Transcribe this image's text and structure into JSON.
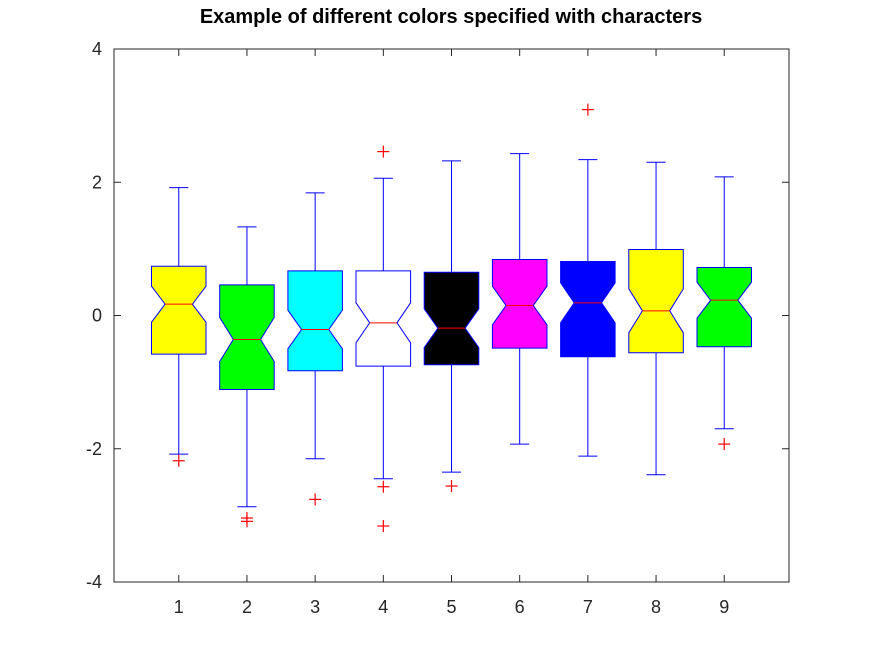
{
  "chart_data": {
    "type": "boxplot",
    "title": "Example of different colors specified with characters",
    "xlabel": "",
    "ylabel": "",
    "categories": [
      "1",
      "2",
      "3",
      "4",
      "5",
      "6",
      "7",
      "8",
      "9"
    ],
    "xlim": [
      0.05,
      9.95
    ],
    "ylim": [
      -4,
      4
    ],
    "yticks": [
      -4,
      -2,
      0,
      2,
      4
    ],
    "yticklabels": [
      "-4",
      "-2",
      "0",
      "2",
      "4"
    ],
    "notched": true,
    "grid": false,
    "legend": "none",
    "box_edge_color": "#0000ff",
    "whisker_color": "#0000ff",
    "median_color": "#ff0000",
    "outlier_color": "#ff0000",
    "outlier_marker": "+",
    "boxes": [
      {
        "label": "1",
        "color_char": "y",
        "color": "#ffff00",
        "whisker_low": -2.08,
        "q1": -0.58,
        "median": 0.17,
        "q3": 0.74,
        "whisker_high": 1.92,
        "notch_low": -0.1,
        "notch_high": 0.44,
        "outliers": [
          -2.18
        ]
      },
      {
        "label": "2",
        "color_char": "g",
        "color": "#00ff00",
        "whisker_low": -2.87,
        "q1": -1.11,
        "median": -0.36,
        "q3": 0.46,
        "whisker_high": 1.33,
        "notch_low": -0.69,
        "notch_high": -0.03,
        "outliers": [
          -3.04,
          -3.09
        ]
      },
      {
        "label": "3",
        "color_char": "c",
        "color": "#00ffff",
        "whisker_low": -2.15,
        "q1": -0.83,
        "median": -0.21,
        "q3": 0.67,
        "whisker_high": 1.84,
        "notch_low": -0.5,
        "notch_high": 0.08,
        "outliers": [
          -2.76
        ]
      },
      {
        "label": "4",
        "color_char": "w",
        "color": "#ffffff",
        "whisker_low": -2.45,
        "q1": -0.76,
        "median": -0.11,
        "q3": 0.67,
        "whisker_high": 2.06,
        "notch_low": -0.41,
        "notch_high": 0.19,
        "outliers": [
          2.46,
          -2.57,
          -3.16
        ]
      },
      {
        "label": "5",
        "color_char": "k",
        "color": "#000000",
        "whisker_low": -2.35,
        "q1": -0.74,
        "median": -0.19,
        "q3": 0.65,
        "whisker_high": 2.32,
        "notch_low": -0.48,
        "notch_high": 0.1,
        "outliers": [
          -2.56
        ]
      },
      {
        "label": "6",
        "color_char": "m",
        "color": "#ff00ff",
        "whisker_low": -1.93,
        "q1": -0.49,
        "median": 0.15,
        "q3": 0.84,
        "whisker_high": 2.43,
        "notch_low": -0.14,
        "notch_high": 0.44,
        "outliers": []
      },
      {
        "label": "7",
        "color_char": "b",
        "color": "#0000ff",
        "whisker_low": -2.11,
        "q1": -0.62,
        "median": 0.19,
        "q3": 0.81,
        "whisker_high": 2.34,
        "notch_low": -0.11,
        "notch_high": 0.49,
        "outliers": [
          3.09
        ]
      },
      {
        "label": "8",
        "color_char": "y",
        "color": "#ffff00",
        "whisker_low": -2.39,
        "q1": -0.56,
        "median": 0.07,
        "q3": 0.99,
        "whisker_high": 2.3,
        "notch_low": -0.26,
        "notch_high": 0.4,
        "outliers": []
      },
      {
        "label": "9",
        "color_char": "g",
        "color": "#00ff00",
        "whisker_low": -1.7,
        "q1": -0.47,
        "median": 0.23,
        "q3": 0.72,
        "whisker_high": 2.08,
        "notch_low": -0.04,
        "notch_high": 0.5,
        "outliers": [
          -1.93
        ]
      }
    ]
  }
}
